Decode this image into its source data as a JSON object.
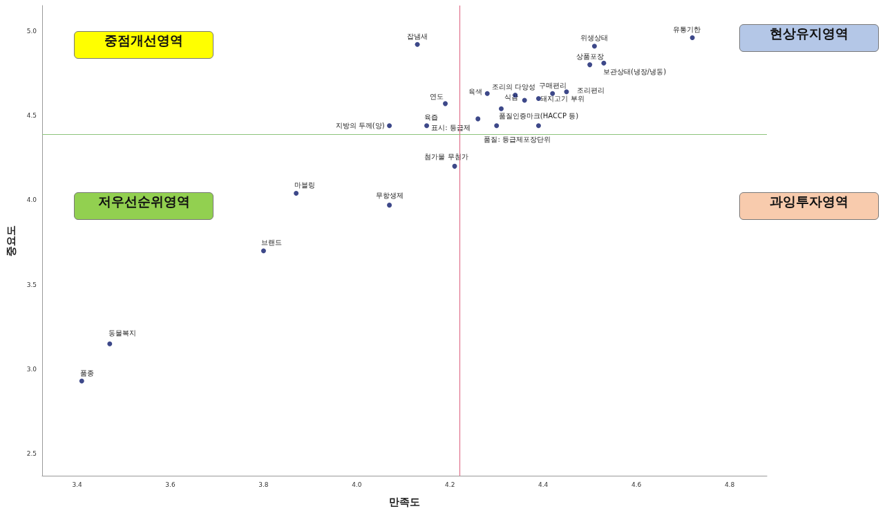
{
  "chart_data": {
    "type": "scatter",
    "xlabel": "만족도",
    "ylabel": "중요도",
    "x": [
      4.13,
      4.51,
      4.72,
      4.5,
      4.53,
      4.34,
      4.42,
      4.45,
      4.39,
      4.36,
      4.19,
      4.28,
      4.15,
      4.07,
      4.26,
      4.39,
      4.3,
      4.21,
      3.87,
      4.07,
      3.8,
      3.47,
      3.41,
      4.31
    ],
    "series": [
      {
        "color": "#0d1a6b",
        "values": [
          4.92,
          4.91,
          4.96,
          4.8,
          4.81,
          4.62,
          4.63,
          4.64,
          4.6,
          4.59,
          4.57,
          4.63,
          4.44,
          4.44,
          4.48,
          4.44,
          4.44,
          4.2,
          4.04,
          3.97,
          3.7,
          3.15,
          2.93,
          4.54
        ]
      }
    ],
    "xlim": [
      3.325,
      4.88
    ],
    "ylim": [
      2.37,
      5.15
    ],
    "xticks": [
      3.4,
      3.6,
      3.8,
      {
        "value": 4,
        "label": "4.0"
      },
      4.2,
      4.4,
      4.6,
      4.8
    ],
    "yticks": [
      2.5,
      {
        "value": 3,
        "label": "3.0"
      },
      3.5,
      {
        "value": 4,
        "label": "4.0"
      },
      4.5,
      {
        "value": 5,
        "label": "5.0"
      }
    ],
    "grid": false,
    "marker": "circle",
    "ref_lines": [
      {
        "axis": "x",
        "value": 4.216,
        "color": "#e0708a"
      },
      {
        "axis": "y",
        "value": 4.39,
        "color": "#8cc47a"
      }
    ],
    "annotations": [
      {
        "text": "잡냄새",
        "x": 4.13,
        "y": 4.92
      },
      {
        "text": "위생상태",
        "x": 4.51,
        "y": 4.91
      },
      {
        "text": "유통기한",
        "x": 4.72,
        "y": 4.96
      },
      {
        "text": "상품포장",
        "x": 4.5,
        "y": 4.8
      },
      {
        "text": "보관상태(냉장/냉동)",
        "x": 4.53,
        "y": 4.81
      },
      {
        "text": "조리의 다양성",
        "x": 4.34,
        "y": 4.62
      },
      {
        "text": "구매편리",
        "x": 4.42,
        "y": 4.63
      },
      {
        "text": "조리편리",
        "x": 4.45,
        "y": 4.64
      },
      {
        "text": "돼지고기 부위",
        "x": 4.39,
        "y": 4.6
      },
      {
        "text": "식감",
        "x": 4.36,
        "y": 4.59
      },
      {
        "text": "연도",
        "x": 4.19,
        "y": 4.57
      },
      {
        "text": "육색",
        "x": 4.28,
        "y": 4.63
      },
      {
        "text": "육즙",
        "x": 4.15,
        "y": 4.44
      },
      {
        "text": "지방의 두께(양)",
        "x": 4.07,
        "y": 4.44
      },
      {
        "text": "표시: 등급제",
        "x": 4.26,
        "y": 4.48
      },
      {
        "text": "품질인증마크(HACCP 등)",
        "x": 4.39,
        "y": 4.44
      },
      {
        "text": "품질: 등급제포장단위",
        "x": 4.3,
        "y": 4.44
      },
      {
        "text": "첨가물 무첨가",
        "x": 4.21,
        "y": 4.2
      },
      {
        "text": "마블링",
        "x": 3.87,
        "y": 4.04
      },
      {
        "text": "무항생제",
        "x": 4.07,
        "y": 3.97
      },
      {
        "text": "브랜드",
        "x": 3.8,
        "y": 3.7
      },
      {
        "text": "동물복지",
        "x": 3.47,
        "y": 3.15
      },
      {
        "text": "품종",
        "x": 3.41,
        "y": 2.93
      },
      "중점개선영역",
      "현상유지영역",
      "저우선순위영역",
      "과잉투자영역"
    ]
  }
}
